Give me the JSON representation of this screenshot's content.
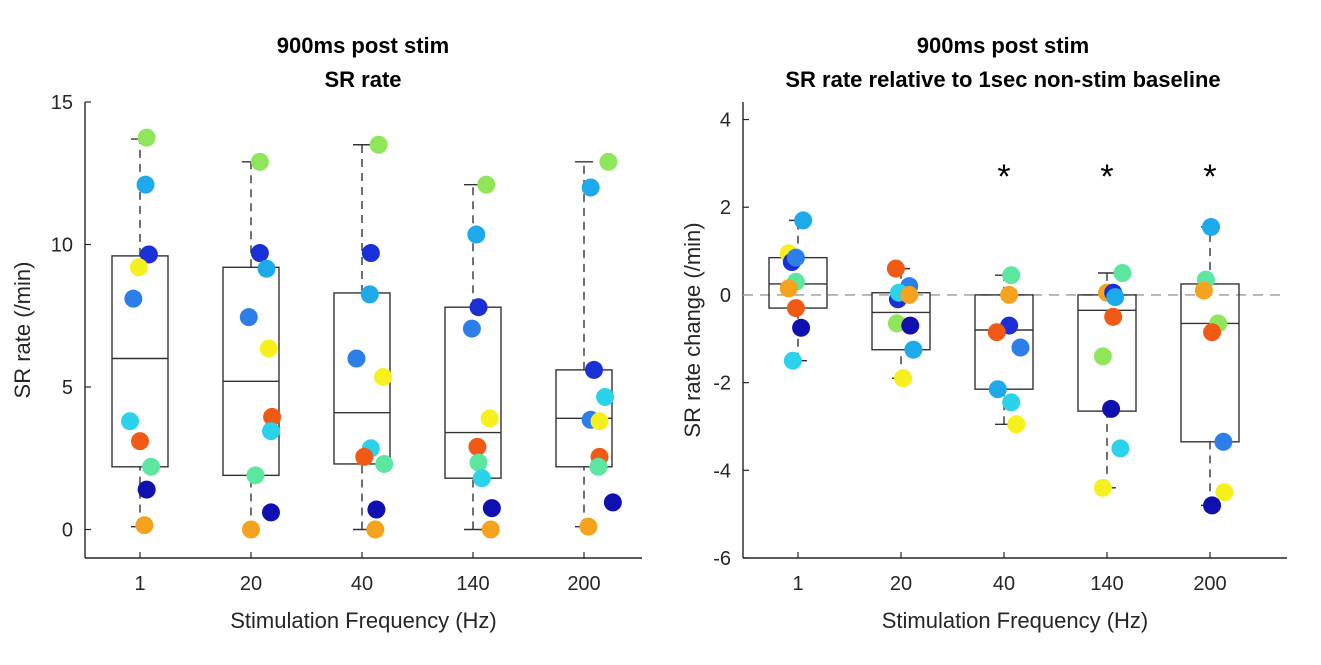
{
  "chart_data": [
    {
      "type": "box-scatter",
      "title": [
        "900ms post stim",
        "SR rate"
      ],
      "xlabel": "Stimulation Frequency (Hz)",
      "ylabel": "SR rate (/min)",
      "categories": [
        "1",
        "20",
        "40",
        "140",
        "200"
      ],
      "ylim": [
        -1,
        15
      ],
      "yticks": [
        0,
        5,
        10,
        15
      ],
      "zero_line": false,
      "boxes": [
        {
          "q1": 2.2,
          "median": 6.0,
          "q3": 9.6,
          "whisker_low": 0.1,
          "whisker_high": 13.7
        },
        {
          "q1": 1.9,
          "median": 5.2,
          "q3": 9.2,
          "whisker_low": 0.0,
          "whisker_high": 12.9
        },
        {
          "q1": 2.3,
          "median": 4.1,
          "q3": 8.3,
          "whisker_low": 0.0,
          "whisker_high": 13.5
        },
        {
          "q1": 1.8,
          "median": 3.4,
          "q3": 7.8,
          "whisker_low": 0.0,
          "whisker_high": 12.1
        },
        {
          "q1": 2.2,
          "median": 3.9,
          "q3": 5.6,
          "whisker_low": 0.1,
          "whisker_high": 12.9
        }
      ],
      "points": [
        [
          {
            "dx": 0.06,
            "y": 13.75,
            "color": "#8fe65a"
          },
          {
            "dx": 0.05,
            "y": 12.1,
            "color": "#1eaaea"
          },
          {
            "dx": 0.08,
            "y": 9.65,
            "color": "#1a2fd6"
          },
          {
            "dx": -0.01,
            "y": 9.2,
            "color": "#f5f01e"
          },
          {
            "dx": -0.06,
            "y": 8.1,
            "color": "#2c7ee8"
          },
          {
            "dx": -0.09,
            "y": 3.8,
            "color": "#2ad2ea"
          },
          {
            "dx": 0.0,
            "y": 3.1,
            "color": "#f05a14"
          },
          {
            "dx": 0.1,
            "y": 2.2,
            "color": "#5ce6a0"
          },
          {
            "dx": 0.06,
            "y": 1.4,
            "color": "#1010b0"
          },
          {
            "dx": 0.04,
            "y": 0.15,
            "color": "#f5a21e"
          }
        ],
        [
          {
            "dx": 0.08,
            "y": 12.9,
            "color": "#8fe65a"
          },
          {
            "dx": 0.08,
            "y": 9.7,
            "color": "#1a2fd6"
          },
          {
            "dx": 0.14,
            "y": 9.15,
            "color": "#1eaaea"
          },
          {
            "dx": -0.02,
            "y": 7.45,
            "color": "#2c7ee8"
          },
          {
            "dx": 0.16,
            "y": 6.35,
            "color": "#f5f01e"
          },
          {
            "dx": 0.19,
            "y": 3.95,
            "color": "#f05a14"
          },
          {
            "dx": 0.18,
            "y": 3.45,
            "color": "#2ad2ea"
          },
          {
            "dx": 0.04,
            "y": 1.9,
            "color": "#5ce6a0"
          },
          {
            "dx": 0.18,
            "y": 0.6,
            "color": "#1010b0"
          },
          {
            "dx": 0.0,
            "y": 0.0,
            "color": "#f5a21e"
          }
        ],
        [
          {
            "dx": 0.15,
            "y": 13.5,
            "color": "#8fe65a"
          },
          {
            "dx": 0.08,
            "y": 9.7,
            "color": "#1a2fd6"
          },
          {
            "dx": 0.07,
            "y": 8.25,
            "color": "#1eaaea"
          },
          {
            "dx": -0.05,
            "y": 6.0,
            "color": "#2c7ee8"
          },
          {
            "dx": 0.19,
            "y": 5.35,
            "color": "#f5f01e"
          },
          {
            "dx": 0.08,
            "y": 2.85,
            "color": "#2ad2ea"
          },
          {
            "dx": 0.02,
            "y": 2.55,
            "color": "#f05a14"
          },
          {
            "dx": 0.2,
            "y": 2.3,
            "color": "#5ce6a0"
          },
          {
            "dx": 0.13,
            "y": 0.7,
            "color": "#1010b0"
          },
          {
            "dx": 0.12,
            "y": 0.0,
            "color": "#f5a21e"
          }
        ],
        [
          {
            "dx": 0.12,
            "y": 12.1,
            "color": "#8fe65a"
          },
          {
            "dx": 0.03,
            "y": 10.35,
            "color": "#1eaaea"
          },
          {
            "dx": 0.05,
            "y": 7.8,
            "color": "#1a2fd6"
          },
          {
            "dx": -0.01,
            "y": 7.05,
            "color": "#2c7ee8"
          },
          {
            "dx": 0.15,
            "y": 3.9,
            "color": "#f5f01e"
          },
          {
            "dx": 0.04,
            "y": 2.9,
            "color": "#f05a14"
          },
          {
            "dx": 0.05,
            "y": 2.35,
            "color": "#5ce6a0"
          },
          {
            "dx": 0.08,
            "y": 1.8,
            "color": "#2ad2ea"
          },
          {
            "dx": 0.17,
            "y": 0.75,
            "color": "#1010b0"
          },
          {
            "dx": 0.16,
            "y": 0.0,
            "color": "#f5a21e"
          }
        ],
        [
          {
            "dx": 0.22,
            "y": 12.9,
            "color": "#8fe65a"
          },
          {
            "dx": 0.06,
            "y": 12.0,
            "color": "#1eaaea"
          },
          {
            "dx": 0.09,
            "y": 5.6,
            "color": "#1a2fd6"
          },
          {
            "dx": 0.19,
            "y": 4.65,
            "color": "#2ad2ea"
          },
          {
            "dx": 0.06,
            "y": 3.85,
            "color": "#2c7ee8"
          },
          {
            "dx": 0.14,
            "y": 3.8,
            "color": "#f5f01e"
          },
          {
            "dx": 0.14,
            "y": 2.55,
            "color": "#f05a14"
          },
          {
            "dx": 0.13,
            "y": 2.2,
            "color": "#5ce6a0"
          },
          {
            "dx": 0.26,
            "y": 0.95,
            "color": "#1010b0"
          },
          {
            "dx": 0.04,
            "y": 0.1,
            "color": "#f5a21e"
          }
        ]
      ],
      "significance": [
        "",
        "",
        "",
        "",
        ""
      ]
    },
    {
      "type": "box-scatter",
      "title": [
        "900ms post stim",
        "SR rate relative to 1sec non-stim baseline"
      ],
      "xlabel": "Stimulation Frequency (Hz)",
      "ylabel": "SR rate change (/min)",
      "categories": [
        "1",
        "20",
        "40",
        "140",
        "200"
      ],
      "ylim": [
        -6,
        4.4
      ],
      "yticks": [
        -6,
        -4,
        -2,
        0,
        2,
        4
      ],
      "zero_line": true,
      "boxes": [
        {
          "q1": -0.3,
          "median": 0.25,
          "q3": 0.85,
          "whisker_low": -1.5,
          "whisker_high": 1.7
        },
        {
          "q1": -1.25,
          "median": -0.4,
          "q3": 0.05,
          "whisker_low": -1.9,
          "whisker_high": 0.6
        },
        {
          "q1": -2.15,
          "median": -0.8,
          "q3": 0.0,
          "whisker_low": -2.95,
          "whisker_high": 0.45
        },
        {
          "q1": -2.65,
          "median": -0.35,
          "q3": 0.0,
          "whisker_low": -4.4,
          "whisker_high": 0.5
        },
        {
          "q1": -3.35,
          "median": -0.65,
          "q3": 0.25,
          "whisker_low": -4.8,
          "whisker_high": 1.55
        }
      ],
      "points": [
        [
          {
            "dx": 0.05,
            "y": 1.7,
            "color": "#1eaaea"
          },
          {
            "dx": -0.09,
            "y": 0.95,
            "color": "#f5f01e"
          },
          {
            "dx": -0.06,
            "y": 0.75,
            "color": "#1a2fd6"
          },
          {
            "dx": -0.02,
            "y": 0.85,
            "color": "#2c7ee8"
          },
          {
            "dx": -0.02,
            "y": 0.3,
            "color": "#5ce6a0"
          },
          {
            "dx": -0.09,
            "y": 0.15,
            "color": "#f5a21e"
          },
          {
            "dx": -0.02,
            "y": -0.3,
            "color": "#f05a14"
          },
          {
            "dx": 0.03,
            "y": -0.75,
            "color": "#1010b0"
          },
          {
            "dx": -0.05,
            "y": -1.5,
            "color": "#2ad2ea"
          }
        ],
        [
          {
            "dx": -0.05,
            "y": 0.6,
            "color": "#f05a14"
          },
          {
            "dx": 0.08,
            "y": 0.2,
            "color": "#2c7ee8"
          },
          {
            "dx": -0.03,
            "y": -0.1,
            "color": "#1a2fd6"
          },
          {
            "dx": -0.02,
            "y": 0.05,
            "color": "#2ad2ea"
          },
          {
            "dx": 0.08,
            "y": 0.0,
            "color": "#f5a21e"
          },
          {
            "dx": -0.04,
            "y": -0.65,
            "color": "#8fe65a"
          },
          {
            "dx": 0.09,
            "y": -0.7,
            "color": "#1010b0"
          },
          {
            "dx": 0.12,
            "y": -1.25,
            "color": "#1eaaea"
          },
          {
            "dx": 0.02,
            "y": -1.9,
            "color": "#f5f01e"
          }
        ],
        [
          {
            "dx": 0.07,
            "y": 0.45,
            "color": "#5ce6a0"
          },
          {
            "dx": 0.05,
            "y": 0.0,
            "color": "#f5a21e"
          },
          {
            "dx": 0.05,
            "y": -0.7,
            "color": "#1a2fd6"
          },
          {
            "dx": -0.07,
            "y": -0.85,
            "color": "#f05a14"
          },
          {
            "dx": 0.16,
            "y": -1.2,
            "color": "#2c7ee8"
          },
          {
            "dx": -0.06,
            "y": -2.15,
            "color": "#1eaaea"
          },
          {
            "dx": 0.07,
            "y": -2.45,
            "color": "#2ad2ea"
          },
          {
            "dx": 0.12,
            "y": -2.95,
            "color": "#f5f01e"
          }
        ],
        [
          {
            "dx": 0.15,
            "y": 0.5,
            "color": "#5ce6a0"
          },
          {
            "dx": 0.0,
            "y": 0.05,
            "color": "#f5a21e"
          },
          {
            "dx": 0.06,
            "y": 0.05,
            "color": "#1a2fd6"
          },
          {
            "dx": 0.08,
            "y": -0.05,
            "color": "#1eaaea"
          },
          {
            "dx": 0.06,
            "y": -0.5,
            "color": "#f05a14"
          },
          {
            "dx": -0.04,
            "y": -1.4,
            "color": "#8fe65a"
          },
          {
            "dx": 0.04,
            "y": -2.6,
            "color": "#1010b0"
          },
          {
            "dx": 0.13,
            "y": -3.5,
            "color": "#2ad2ea"
          },
          {
            "dx": -0.04,
            "y": -4.4,
            "color": "#f5f01e"
          }
        ],
        [
          {
            "dx": 0.01,
            "y": 1.55,
            "color": "#1eaaea"
          },
          {
            "dx": -0.04,
            "y": 0.35,
            "color": "#5ce6a0"
          },
          {
            "dx": -0.06,
            "y": 0.1,
            "color": "#f5a21e"
          },
          {
            "dx": 0.08,
            "y": -0.65,
            "color": "#8fe65a"
          },
          {
            "dx": 0.02,
            "y": -0.85,
            "color": "#f05a14"
          },
          {
            "dx": 0.13,
            "y": -3.35,
            "color": "#2c7ee8"
          },
          {
            "dx": 0.14,
            "y": -4.5,
            "color": "#f5f01e"
          },
          {
            "dx": 0.02,
            "y": -4.8,
            "color": "#1010b0"
          }
        ]
      ],
      "significance": [
        "",
        "",
        "*",
        "*",
        "*"
      ]
    }
  ]
}
